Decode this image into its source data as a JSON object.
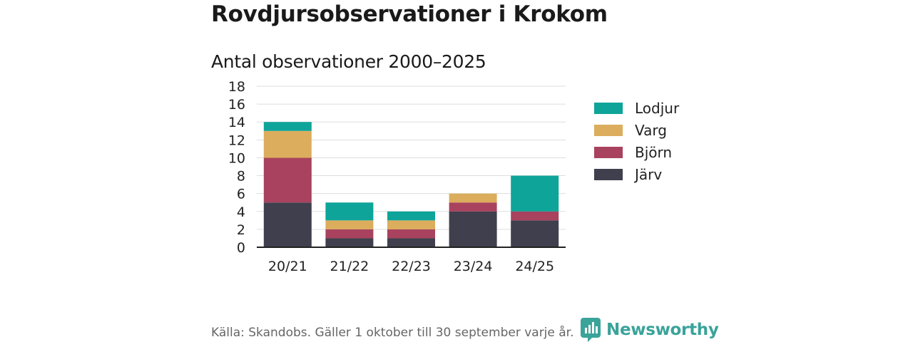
{
  "header": {
    "title": "Rovdjursobservationer i Krokom",
    "subtitle": "Antal observationer 2000–2025"
  },
  "chart_data": {
    "type": "bar",
    "stacked": true,
    "title": "Rovdjursobservationer i Krokom",
    "subtitle": "Antal observationer 2000–2025",
    "categories": [
      "20/21",
      "21/22",
      "22/23",
      "23/24",
      "24/25"
    ],
    "series": [
      {
        "name": "Järv",
        "color": "#3f3f4d",
        "values": [
          5,
          1,
          1,
          4,
          3
        ]
      },
      {
        "name": "Björn",
        "color": "#a8425e",
        "values": [
          5,
          1,
          1,
          1,
          1
        ]
      },
      {
        "name": "Varg",
        "color": "#dbad5c",
        "values": [
          3,
          1,
          1,
          1,
          0
        ]
      },
      {
        "name": "Lodjur",
        "color": "#0ea499",
        "values": [
          1,
          2,
          1,
          0,
          4
        ]
      }
    ],
    "legend_order": [
      "Lodjur",
      "Varg",
      "Björn",
      "Järv"
    ],
    "ylim": [
      0,
      18
    ],
    "yticks": [
      0,
      2,
      4,
      6,
      8,
      10,
      12,
      14,
      16,
      18
    ],
    "xlabel": "",
    "ylabel": "",
    "grid": true,
    "legend_position": "right"
  },
  "footer": {
    "source": "Källa: Skandobs. Gäller 1 oktober till 30 september varje år.",
    "brand": "Newsworthy",
    "brand_color": "#3aa39a"
  }
}
